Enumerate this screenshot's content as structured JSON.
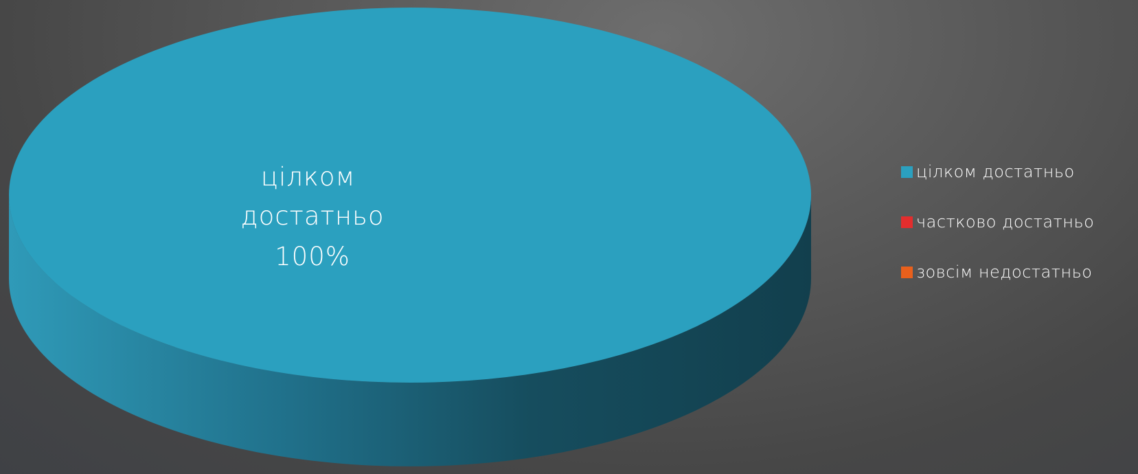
{
  "chart_data": {
    "type": "pie",
    "categories": [
      "цілком достатньо",
      "частково достатньо",
      "зовсім недостатньо"
    ],
    "values": [
      100,
      0,
      0
    ],
    "unit": "%",
    "data_labels": [
      {
        "category": "цілком достатньо",
        "value": "100%"
      }
    ],
    "legend_position": "right",
    "colors": [
      "#2ba0bf",
      "#e32d2d",
      "#e9601c"
    ],
    "style": "3d"
  },
  "colors": {
    "top_face": "#2ba0bf",
    "side_light": "#2f9ab8",
    "side_dark": "#123f4d"
  }
}
